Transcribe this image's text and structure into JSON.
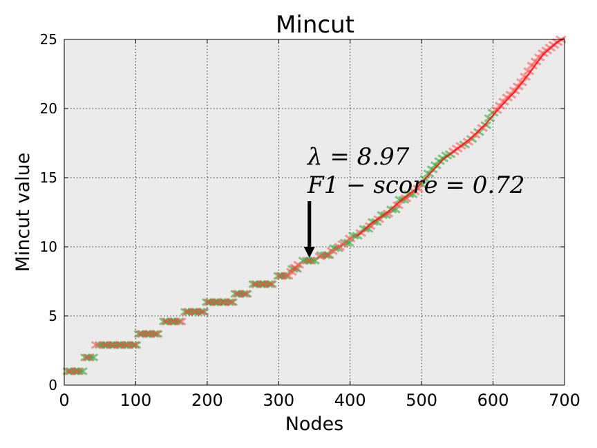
{
  "chart_data": {
    "type": "scatter",
    "title": "Mincut",
    "xlabel": "Nodes",
    "ylabel": "Mincut value",
    "xlim": [
      0,
      700
    ],
    "ylim": [
      0,
      25
    ],
    "xticks": [
      "0",
      "100",
      "200",
      "300",
      "400",
      "500",
      "600",
      "700"
    ],
    "yticks": [
      "0",
      "5",
      "10",
      "15",
      "20",
      "25"
    ],
    "grid": true,
    "background": "#ebebeb",
    "colors": {
      "green": "#2ca02c",
      "red": "#ff4a4a",
      "line": "#ff1a1a"
    },
    "marker": "x",
    "series": [
      {
        "color": "#2ca02c",
        "points": [
          [
            5,
            1
          ],
          [
            10,
            1
          ],
          [
            15,
            1
          ],
          [
            20,
            1
          ],
          [
            25,
            1
          ],
          [
            30,
            2
          ],
          [
            35,
            2
          ],
          [
            40,
            2
          ],
          [
            50,
            2.9
          ],
          [
            55,
            2.9
          ],
          [
            60,
            2.9
          ],
          [
            65,
            2.9
          ],
          [
            70,
            2.9
          ],
          [
            75,
            2.9
          ],
          [
            80,
            2.9
          ],
          [
            85,
            2.9
          ],
          [
            90,
            2.9
          ],
          [
            95,
            2.9
          ],
          [
            100,
            2.9
          ],
          [
            105,
            3.7
          ],
          [
            110,
            3.7
          ],
          [
            115,
            3.7
          ],
          [
            120,
            3.7
          ],
          [
            125,
            3.7
          ],
          [
            130,
            3.7
          ],
          [
            140,
            4.6
          ],
          [
            145,
            4.6
          ],
          [
            150,
            4.6
          ],
          [
            155,
            4.6
          ],
          [
            160,
            4.6
          ],
          [
            170,
            5.3
          ],
          [
            175,
            5.3
          ],
          [
            180,
            5.3
          ],
          [
            185,
            5.3
          ],
          [
            190,
            5.3
          ],
          [
            195,
            5.3
          ],
          [
            200,
            6.0
          ],
          [
            205,
            6.0
          ],
          [
            210,
            6.0
          ],
          [
            215,
            6.0
          ],
          [
            220,
            6.0
          ],
          [
            225,
            6.0
          ],
          [
            230,
            6.0
          ],
          [
            235,
            6.0
          ],
          [
            240,
            6.6
          ],
          [
            245,
            6.6
          ],
          [
            250,
            6.6
          ],
          [
            255,
            6.6
          ],
          [
            265,
            7.3
          ],
          [
            270,
            7.3
          ],
          [
            275,
            7.3
          ],
          [
            280,
            7.3
          ],
          [
            285,
            7.3
          ],
          [
            290,
            7.3
          ],
          [
            300,
            7.9
          ],
          [
            305,
            7.9
          ],
          [
            310,
            7.9
          ],
          [
            320,
            8.4
          ],
          [
            325,
            8.4
          ],
          [
            335,
            9.0
          ],
          [
            340,
            9.0
          ],
          [
            345,
            9.0
          ],
          [
            350,
            9.0
          ],
          [
            360,
            9.4
          ],
          [
            365,
            9.4
          ],
          [
            370,
            9.4
          ],
          [
            378,
            9.9
          ],
          [
            383,
            9.9
          ],
          [
            393,
            10.3
          ],
          [
            398,
            10.3
          ],
          [
            405,
            10.8
          ],
          [
            410,
            10.8
          ],
          [
            420,
            11.3
          ],
          [
            425,
            11.3
          ],
          [
            432,
            11.8
          ],
          [
            437,
            11.8
          ],
          [
            445,
            12.3
          ],
          [
            450,
            12.3
          ],
          [
            458,
            12.7
          ],
          [
            463,
            12.7
          ],
          [
            470,
            13.4
          ],
          [
            475,
            13.4
          ],
          [
            482,
            13.8
          ],
          [
            487,
            13.8
          ],
          [
            500,
            14.5
          ],
          [
            505,
            14.9
          ],
          [
            510,
            15.3
          ],
          [
            515,
            15.6
          ],
          [
            520,
            15.9
          ],
          [
            525,
            16.2
          ],
          [
            530,
            16.4
          ],
          [
            535,
            16.6
          ],
          [
            540,
            16.7
          ],
          [
            560,
            17.4
          ],
          [
            570,
            17.8
          ],
          [
            580,
            18.3
          ],
          [
            590,
            18.8
          ],
          [
            595,
            19.3
          ],
          [
            600,
            19.7
          ]
        ]
      },
      {
        "color": "#ff4a4a",
        "points": [
          [
            8,
            1
          ],
          [
            18,
            1
          ],
          [
            33,
            2
          ],
          [
            45,
            2.9
          ],
          [
            58,
            2.9
          ],
          [
            68,
            2.9
          ],
          [
            78,
            2.9
          ],
          [
            88,
            2.9
          ],
          [
            98,
            2.9
          ],
          [
            108,
            3.7
          ],
          [
            118,
            3.7
          ],
          [
            128,
            3.7
          ],
          [
            143,
            4.6
          ],
          [
            153,
            4.6
          ],
          [
            163,
            4.6
          ],
          [
            173,
            5.3
          ],
          [
            183,
            5.3
          ],
          [
            193,
            5.3
          ],
          [
            203,
            6.0
          ],
          [
            213,
            6.0
          ],
          [
            223,
            6.0
          ],
          [
            233,
            6.0
          ],
          [
            243,
            6.6
          ],
          [
            253,
            6.6
          ],
          [
            268,
            7.3
          ],
          [
            278,
            7.3
          ],
          [
            288,
            7.3
          ],
          [
            303,
            7.9
          ],
          [
            313,
            7.9
          ],
          [
            318,
            8.2
          ],
          [
            323,
            8.5
          ],
          [
            328,
            8.7
          ],
          [
            343,
            9.0
          ],
          [
            358,
            9.3
          ],
          [
            368,
            9.4
          ],
          [
            375,
            9.7
          ],
          [
            385,
            10.0
          ],
          [
            390,
            10.2
          ],
          [
            400,
            10.6
          ],
          [
            415,
            11.0
          ],
          [
            428,
            11.5
          ],
          [
            440,
            12.0
          ],
          [
            453,
            12.4
          ],
          [
            467,
            13.0
          ],
          [
            478,
            13.5
          ],
          [
            490,
            14.0
          ],
          [
            495,
            14.2
          ],
          [
            545,
            16.9
          ],
          [
            550,
            17.1
          ],
          [
            555,
            17.3
          ],
          [
            565,
            17.6
          ],
          [
            575,
            18.1
          ],
          [
            585,
            18.6
          ],
          [
            605,
            19.9
          ],
          [
            610,
            20.2
          ],
          [
            615,
            20.5
          ],
          [
            620,
            20.8
          ],
          [
            625,
            21.0
          ],
          [
            630,
            21.3
          ],
          [
            635,
            21.6
          ],
          [
            640,
            21.9
          ],
          [
            645,
            22.3
          ],
          [
            650,
            22.7
          ],
          [
            655,
            23.1
          ],
          [
            660,
            23.4
          ],
          [
            665,
            23.7
          ],
          [
            670,
            24.0
          ],
          [
            675,
            24.2
          ],
          [
            680,
            24.4
          ],
          [
            685,
            24.6
          ],
          [
            690,
            24.8
          ],
          [
            695,
            25.0
          ]
        ]
      }
    ],
    "line": {
      "color": "#ff1a1a",
      "points": [
        [
          410,
          10.8
        ],
        [
          430,
          11.7
        ],
        [
          450,
          12.4
        ],
        [
          470,
          13.3
        ],
        [
          490,
          14.1
        ],
        [
          510,
          15.2
        ],
        [
          530,
          16.3
        ],
        [
          550,
          17.1
        ],
        [
          570,
          17.9
        ],
        [
          590,
          18.9
        ],
        [
          610,
          20.1
        ],
        [
          630,
          21.2
        ],
        [
          650,
          22.5
        ],
        [
          670,
          23.9
        ],
        [
          690,
          24.8
        ],
        [
          700,
          25.1
        ]
      ]
    },
    "annotations": {
      "lambda_text": "λ = 8.97",
      "f1_text": "F1 − score = 0.72",
      "arrow_target": [
        343,
        9.2
      ],
      "arrow_tail": [
        343,
        13.3
      ]
    }
  }
}
